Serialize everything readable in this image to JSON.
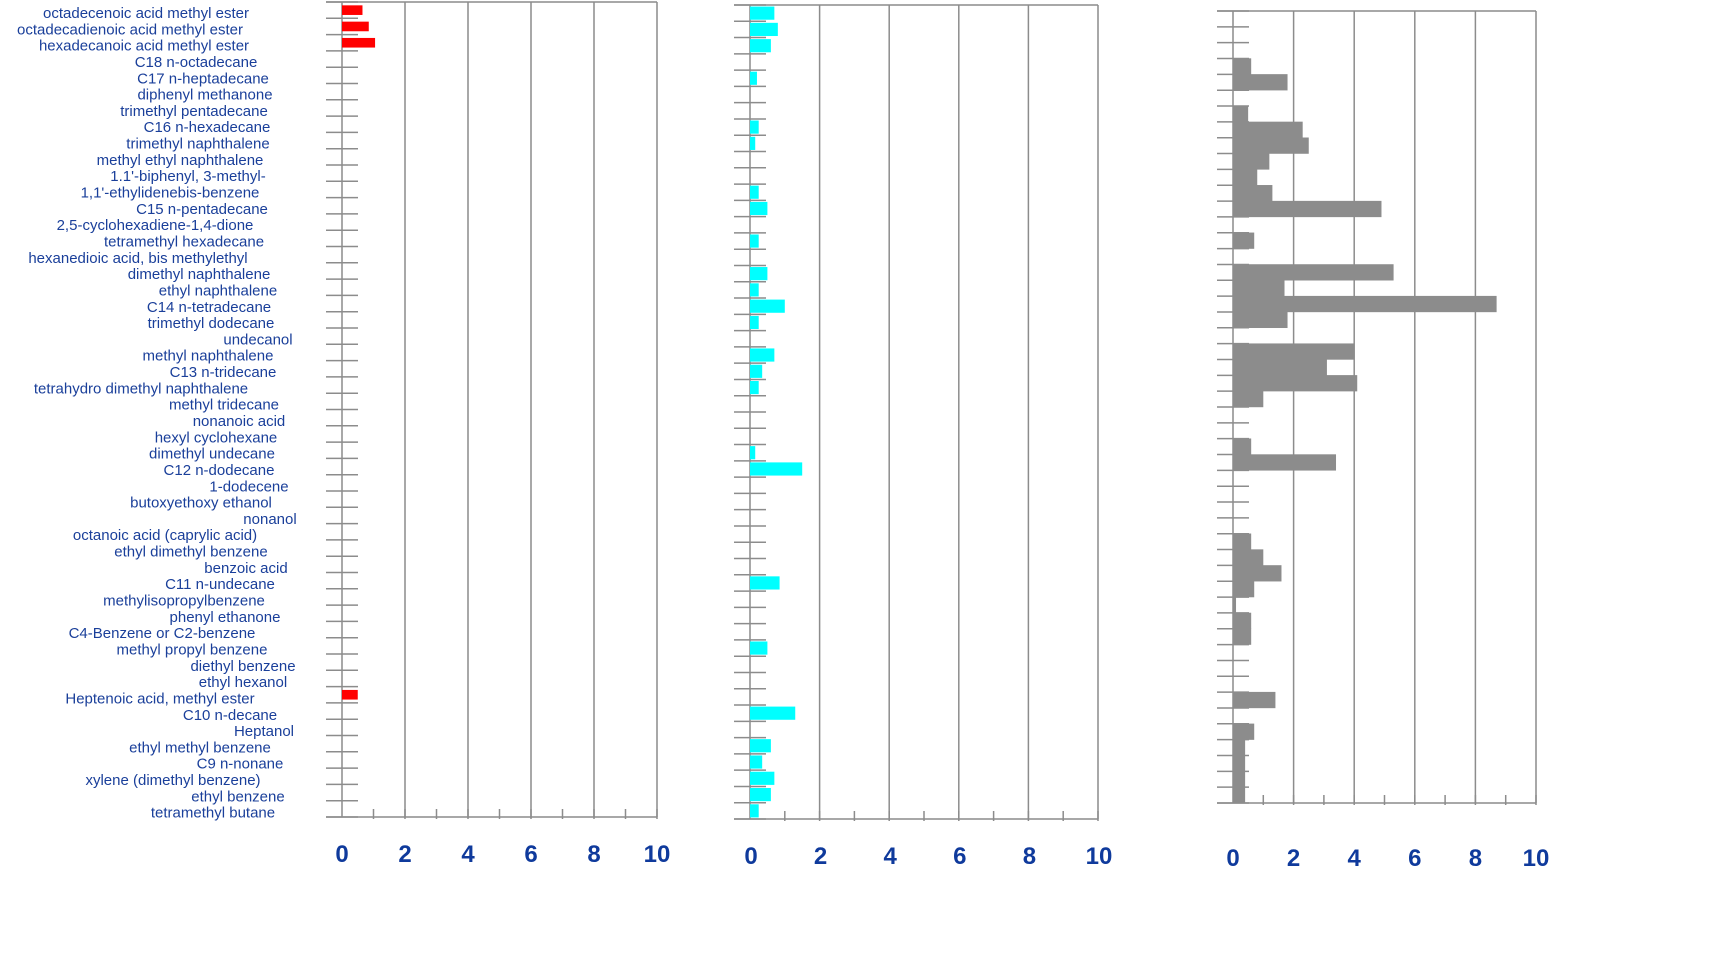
{
  "chart_data": {
    "type": "bar",
    "orientation": "horizontal",
    "categories": [
      "octadecenoic acid methyl ester",
      "octadecadienoic acid methyl ester",
      "hexadecanoic acid methyl ester",
      "C18  n-octadecane",
      "C17  n-heptadecane",
      "diphenyl methanone",
      "trimethyl pentadecane",
      "C16  n-hexadecane",
      "trimethyl naphthalene",
      "methyl ethyl naphthalene",
      "1.1'-biphenyl, 3-methyl-",
      "1,1'-ethylidenebis-benzene",
      "C15  n-pentadecane",
      "2,5-cyclohexadiene-1,4-dione",
      "tetramethyl hexadecane",
      "hexanedioic acid, bis methylethyl",
      "dimethyl naphthalene",
      "ethyl naphthalene",
      "C14  n-tetradecane",
      "trimethyl dodecane",
      "undecanol",
      "methyl naphthalene",
      "C13  n-tridecane",
      "tetrahydro dimethyl naphthalene",
      "methyl tridecane",
      "nonanoic acid",
      "hexyl cyclohexane",
      "dimethyl undecane",
      "C12  n-dodecane",
      "1-dodecene",
      "butoxyethoxy ethanol",
      "nonanol",
      "octanoic acid (caprylic acid)",
      "ethyl dimethyl benzene",
      "benzoic acid",
      "C11  n-undecane",
      "methylisopropylbenzene",
      "phenyl ethanone",
      "C4-Benzene or C2-benzene",
      "methyl propyl benzene",
      "diethyl benzene",
      "ethyl hexanol",
      "Heptenoic acid, methyl ester",
      "C10   n-decane",
      "Heptanol",
      "ethyl methyl benzene",
      "C9  n-nonane",
      "xylene (dimethyl benzene)",
      "ethyl benzene",
      "tetramethyl butane"
    ],
    "xlim": [
      0,
      10
    ],
    "x_ticks": [
      "0",
      "2",
      "4",
      "6",
      "8",
      "10"
    ],
    "grid": "vertical",
    "panels": [
      {
        "color": "#ff0000",
        "values": [
          0.65,
          0.85,
          1.05,
          0,
          0,
          0,
          0,
          0,
          0,
          0,
          0,
          0,
          0,
          0,
          0,
          0,
          0,
          0,
          0,
          0,
          0,
          0,
          0,
          0,
          0,
          0,
          0,
          0,
          0,
          0,
          0,
          0,
          0,
          0,
          0,
          0,
          0,
          0,
          0,
          0,
          0,
          0,
          0.5,
          0,
          0,
          0,
          0,
          0,
          0,
          0
        ]
      },
      {
        "color": "#00ffff",
        "values": [
          0.7,
          0.8,
          0.6,
          0,
          0.2,
          0,
          0,
          0.25,
          0.15,
          0,
          0,
          0.25,
          0.5,
          0,
          0.25,
          0,
          0.5,
          0.25,
          1.0,
          0.25,
          0,
          0.7,
          0.35,
          0.25,
          0,
          0,
          0,
          0.15,
          1.5,
          0,
          0,
          0,
          0,
          0,
          0,
          0.85,
          0,
          0,
          0,
          0.5,
          0,
          0,
          0,
          1.3,
          0,
          0.6,
          0.35,
          0.7,
          0.6,
          0.25
        ]
      },
      {
        "color": "#8c8c8c",
        "values": [
          0,
          0,
          0,
          0.6,
          1.8,
          0,
          0.5,
          2.3,
          2.5,
          1.2,
          0.8,
          1.3,
          4.9,
          0,
          0.7,
          0,
          5.3,
          1.7,
          8.7,
          1.8,
          0,
          4.0,
          3.1,
          4.1,
          1.0,
          0,
          0,
          0.6,
          3.4,
          0,
          0,
          0,
          0,
          0.6,
          1.0,
          1.6,
          0.7,
          0.1,
          0.6,
          0.6,
          0,
          0,
          0,
          1.4,
          0,
          0.7,
          0.4,
          0.4,
          0.4,
          0.4
        ]
      }
    ]
  }
}
